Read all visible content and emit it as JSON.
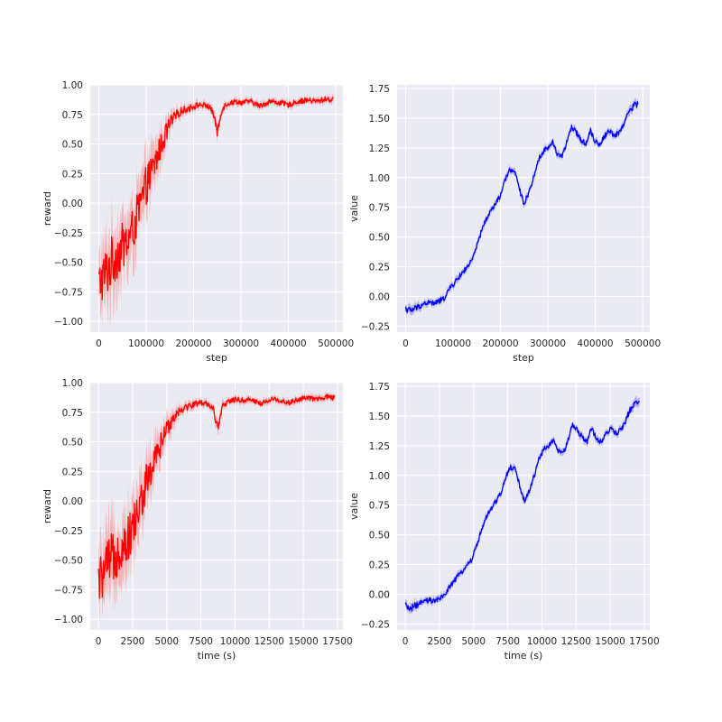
{
  "chart_data": [
    {
      "id": "reward-step",
      "type": "line",
      "color": "#ff0000",
      "band_color": "#f4a3a3",
      "xlabel": "step",
      "ylabel": "reward",
      "xlim": [
        -18000,
        515000
      ],
      "ylim": [
        -1.09,
        1.0
      ],
      "xticks": [
        0,
        100000,
        200000,
        300000,
        400000,
        500000
      ],
      "xtick_labels": [
        "0",
        "100000",
        "200000",
        "300000",
        "400000",
        "500000"
      ],
      "yticks": [
        -1.0,
        -0.75,
        -0.5,
        -0.25,
        0.0,
        0.25,
        0.5,
        0.75,
        1.0
      ],
      "ytick_labels": [
        "−1.00",
        "−0.75",
        "−0.50",
        "−0.25",
        "0.00",
        "0.25",
        "0.50",
        "0.75",
        "1.00"
      ],
      "grid": true,
      "series": [
        {
          "x": [
            0,
            10000,
            20000,
            30000,
            40000,
            50000,
            60000,
            70000,
            80000,
            90000,
            100000,
            110000,
            120000,
            130000,
            140000,
            150000,
            160000,
            170000,
            180000,
            190000,
            200000,
            210000,
            220000,
            230000,
            240000,
            250000,
            260000,
            270000,
            280000,
            290000,
            300000,
            320000,
            340000,
            360000,
            380000,
            400000,
            420000,
            440000,
            460000,
            480000,
            495000
          ],
          "y": [
            -0.68,
            -0.62,
            -0.55,
            -0.48,
            -0.42,
            -0.37,
            -0.33,
            -0.25,
            -0.12,
            0.0,
            0.15,
            0.25,
            0.35,
            0.47,
            0.57,
            0.67,
            0.72,
            0.77,
            0.79,
            0.8,
            0.82,
            0.83,
            0.83,
            0.82,
            0.78,
            0.6,
            0.8,
            0.84,
            0.85,
            0.86,
            0.85,
            0.86,
            0.82,
            0.86,
            0.85,
            0.83,
            0.86,
            0.87,
            0.86,
            0.88,
            0.87
          ],
          "spread": [
            0.25,
            0.28,
            0.3,
            0.3,
            0.28,
            0.27,
            0.27,
            0.25,
            0.25,
            0.24,
            0.22,
            0.2,
            0.18,
            0.15,
            0.12,
            0.09,
            0.07,
            0.05,
            0.04,
            0.04,
            0.04,
            0.03,
            0.03,
            0.03,
            0.04,
            0.06,
            0.04,
            0.03,
            0.03,
            0.03,
            0.03,
            0.03,
            0.03,
            0.03,
            0.03,
            0.03,
            0.03,
            0.03,
            0.03,
            0.03,
            0.03
          ]
        }
      ]
    },
    {
      "id": "value-step",
      "type": "line",
      "color": "#0000ff",
      "band_color": "#9b9bf0",
      "xlabel": "step",
      "ylabel": "value",
      "xlim": [
        -18000,
        515000
      ],
      "ylim": [
        -0.3,
        1.78
      ],
      "xticks": [
        0,
        100000,
        200000,
        300000,
        400000,
        500000
      ],
      "xtick_labels": [
        "0",
        "100000",
        "200000",
        "300000",
        "400000",
        "500000"
      ],
      "yticks": [
        -0.25,
        0.0,
        0.25,
        0.5,
        0.75,
        1.0,
        1.25,
        1.5,
        1.75
      ],
      "ytick_labels": [
        "−0.25",
        "0.00",
        "0.25",
        "0.50",
        "0.75",
        "1.00",
        "1.25",
        "1.50",
        "1.75"
      ],
      "grid": true,
      "series": [
        {
          "x": [
            0,
            10000,
            20000,
            30000,
            40000,
            50000,
            60000,
            70000,
            80000,
            90000,
            100000,
            110000,
            120000,
            130000,
            140000,
            150000,
            160000,
            170000,
            180000,
            190000,
            200000,
            210000,
            220000,
            230000,
            240000,
            250000,
            260000,
            270000,
            280000,
            290000,
            300000,
            310000,
            320000,
            330000,
            340000,
            350000,
            360000,
            370000,
            380000,
            390000,
            400000,
            410000,
            420000,
            430000,
            440000,
            450000,
            460000,
            470000,
            480000,
            490000
          ],
          "y": [
            -0.1,
            -0.12,
            -0.1,
            -0.08,
            -0.06,
            -0.05,
            -0.06,
            -0.04,
            -0.02,
            0.05,
            0.1,
            0.15,
            0.2,
            0.25,
            0.3,
            0.42,
            0.55,
            0.65,
            0.72,
            0.78,
            0.85,
            0.98,
            1.07,
            1.05,
            0.9,
            0.78,
            0.88,
            1.0,
            1.15,
            1.22,
            1.25,
            1.3,
            1.2,
            1.18,
            1.3,
            1.42,
            1.38,
            1.32,
            1.28,
            1.4,
            1.3,
            1.28,
            1.35,
            1.4,
            1.35,
            1.38,
            1.45,
            1.55,
            1.6,
            1.62
          ],
          "spread": [
            0.04,
            0.04,
            0.04,
            0.03,
            0.03,
            0.03,
            0.03,
            0.03,
            0.03,
            0.03,
            0.03,
            0.03,
            0.03,
            0.03,
            0.03,
            0.03,
            0.03,
            0.03,
            0.03,
            0.03,
            0.03,
            0.03,
            0.03,
            0.03,
            0.03,
            0.03,
            0.03,
            0.03,
            0.03,
            0.03,
            0.03,
            0.03,
            0.03,
            0.03,
            0.03,
            0.03,
            0.03,
            0.03,
            0.03,
            0.03,
            0.03,
            0.03,
            0.03,
            0.03,
            0.03,
            0.03,
            0.03,
            0.04,
            0.04,
            0.04
          ]
        }
      ]
    },
    {
      "id": "reward-time",
      "type": "line",
      "color": "#ff0000",
      "band_color": "#f4a3a3",
      "xlabel": "time (s)",
      "ylabel": "reward",
      "xlim": [
        -600,
        17900
      ],
      "ylim": [
        -1.09,
        1.0
      ],
      "xticks": [
        0,
        2500,
        5000,
        7500,
        10000,
        12500,
        15000,
        17500
      ],
      "xtick_labels": [
        "0",
        "2500",
        "5000",
        "7500",
        "10000",
        "12500",
        "15000",
        "17500"
      ],
      "yticks": [
        -1.0,
        -0.75,
        -0.5,
        -0.25,
        0.0,
        0.25,
        0.5,
        0.75,
        1.0
      ],
      "ytick_labels": [
        "−1.00",
        "−0.75",
        "−0.50",
        "−0.25",
        "0.00",
        "0.25",
        "0.50",
        "0.75",
        "1.00"
      ],
      "grid": true,
      "series": [
        {
          "x": [
            0,
            350,
            700,
            1050,
            1400,
            1750,
            2100,
            2450,
            2800,
            3150,
            3500,
            3850,
            4200,
            4550,
            4900,
            5250,
            5600,
            5950,
            6300,
            6650,
            7000,
            7350,
            7700,
            8050,
            8400,
            8750,
            9100,
            9450,
            9800,
            10150,
            10500,
            11200,
            11900,
            12600,
            13300,
            14000,
            14700,
            15400,
            16100,
            16800,
            17300
          ],
          "y": [
            -0.68,
            -0.62,
            -0.55,
            -0.48,
            -0.42,
            -0.37,
            -0.33,
            -0.25,
            -0.12,
            0.0,
            0.15,
            0.25,
            0.35,
            0.47,
            0.57,
            0.67,
            0.72,
            0.77,
            0.79,
            0.8,
            0.82,
            0.83,
            0.83,
            0.82,
            0.78,
            0.6,
            0.8,
            0.84,
            0.85,
            0.86,
            0.85,
            0.86,
            0.82,
            0.86,
            0.85,
            0.83,
            0.86,
            0.87,
            0.86,
            0.88,
            0.87
          ],
          "spread": [
            0.25,
            0.28,
            0.3,
            0.3,
            0.28,
            0.27,
            0.27,
            0.25,
            0.25,
            0.24,
            0.22,
            0.2,
            0.18,
            0.15,
            0.12,
            0.09,
            0.07,
            0.05,
            0.04,
            0.04,
            0.04,
            0.03,
            0.03,
            0.03,
            0.04,
            0.06,
            0.04,
            0.03,
            0.03,
            0.03,
            0.03,
            0.03,
            0.03,
            0.03,
            0.03,
            0.03,
            0.03,
            0.03,
            0.03,
            0.03,
            0.03
          ]
        }
      ]
    },
    {
      "id": "value-time",
      "type": "line",
      "color": "#0000ff",
      "band_color": "#9b9bf0",
      "xlabel": "time (s)",
      "ylabel": "value",
      "xlim": [
        -600,
        17900
      ],
      "ylim": [
        -0.3,
        1.78
      ],
      "xticks": [
        0,
        2500,
        5000,
        7500,
        10000,
        12500,
        15000,
        17500
      ],
      "xtick_labels": [
        "0",
        "2500",
        "5000",
        "7500",
        "10000",
        "12500",
        "15000",
        "17500"
      ],
      "yticks": [
        -0.25,
        0.0,
        0.25,
        0.5,
        0.75,
        1.0,
        1.25,
        1.5,
        1.75
      ],
      "ytick_labels": [
        "−0.25",
        "0.00",
        "0.25",
        "0.50",
        "0.75",
        "1.00",
        "1.25",
        "1.50",
        "1.75"
      ],
      "grid": true,
      "series": [
        {
          "x": [
            0,
            350,
            700,
            1050,
            1400,
            1750,
            2100,
            2450,
            2800,
            3150,
            3500,
            3850,
            4200,
            4550,
            4900,
            5250,
            5600,
            5950,
            6300,
            6650,
            7000,
            7350,
            7700,
            8050,
            8400,
            8750,
            9100,
            9450,
            9800,
            10150,
            10500,
            10850,
            11200,
            11550,
            11900,
            12250,
            12600,
            12950,
            13300,
            13650,
            14000,
            14350,
            14700,
            15050,
            15400,
            15750,
            16100,
            16450,
            16800,
            17150
          ],
          "y": [
            -0.1,
            -0.12,
            -0.1,
            -0.08,
            -0.06,
            -0.05,
            -0.06,
            -0.04,
            -0.02,
            0.05,
            0.1,
            0.15,
            0.2,
            0.25,
            0.3,
            0.42,
            0.55,
            0.65,
            0.72,
            0.78,
            0.85,
            0.98,
            1.07,
            1.05,
            0.9,
            0.78,
            0.88,
            1.0,
            1.15,
            1.22,
            1.25,
            1.3,
            1.2,
            1.18,
            1.3,
            1.42,
            1.38,
            1.32,
            1.28,
            1.4,
            1.3,
            1.28,
            1.35,
            1.4,
            1.35,
            1.38,
            1.45,
            1.55,
            1.6,
            1.62
          ],
          "spread": [
            0.04,
            0.04,
            0.04,
            0.03,
            0.03,
            0.03,
            0.03,
            0.03,
            0.03,
            0.03,
            0.03,
            0.03,
            0.03,
            0.03,
            0.03,
            0.03,
            0.03,
            0.03,
            0.03,
            0.03,
            0.03,
            0.03,
            0.03,
            0.03,
            0.03,
            0.03,
            0.03,
            0.03,
            0.03,
            0.03,
            0.03,
            0.03,
            0.03,
            0.03,
            0.03,
            0.03,
            0.03,
            0.03,
            0.03,
            0.03,
            0.03,
            0.03,
            0.03,
            0.03,
            0.03,
            0.03,
            0.03,
            0.04,
            0.04,
            0.04
          ]
        }
      ]
    }
  ]
}
